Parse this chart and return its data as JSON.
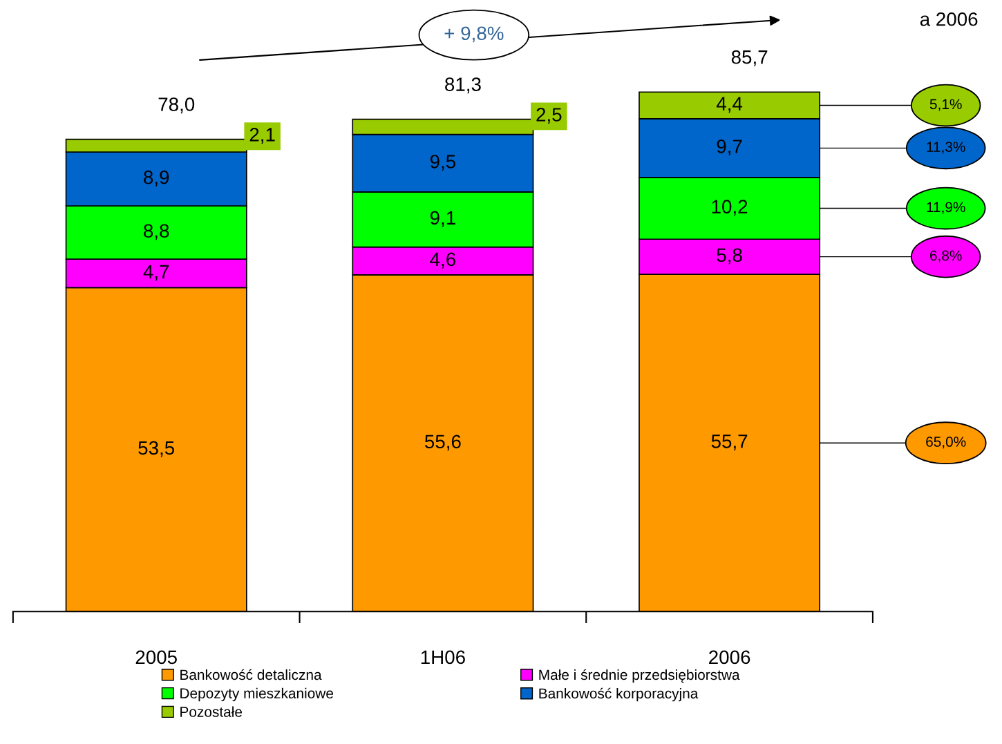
{
  "chart_data": {
    "type": "bar",
    "stacked": true,
    "categories": [
      "2005",
      "1H06",
      "2006"
    ],
    "series": [
      {
        "name": "Bankowość detaliczna",
        "color": "#ff9900",
        "values": [
          53.5,
          55.6,
          55.7
        ],
        "value_labels": [
          "53,5",
          "55,6",
          "55,7"
        ]
      },
      {
        "name": "Małe i średnie przedsiębiorstwa",
        "color": "#ff00ff",
        "values": [
          4.7,
          4.6,
          5.8
        ],
        "value_labels": [
          "4,7",
          "4,6",
          "5,8"
        ]
      },
      {
        "name": "Depozyty mieszkaniowe",
        "color": "#00ff00",
        "values": [
          8.8,
          9.1,
          10.2
        ],
        "value_labels": [
          "8,8",
          "9,1",
          "10,2"
        ]
      },
      {
        "name": "Bankowość korporacyjna",
        "color": "#0066cc",
        "values": [
          8.9,
          9.5,
          9.7
        ],
        "value_labels": [
          "8,9",
          "9,5",
          "9,7"
        ]
      },
      {
        "name": "Pozostałe",
        "color": "#99cc00",
        "values": [
          2.1,
          2.5,
          4.4
        ],
        "value_labels": [
          "2,1",
          "2,5",
          "4,4"
        ]
      }
    ],
    "totals": [
      "78,0",
      "81,3",
      "85,7"
    ],
    "annotations": [
      "+ 9,8%",
      "a 2006",
      "65,0%",
      "6,8%",
      "11,9%",
      "11,3%",
      "5,1%"
    ],
    "legend": "bottom",
    "grid": false
  }
}
